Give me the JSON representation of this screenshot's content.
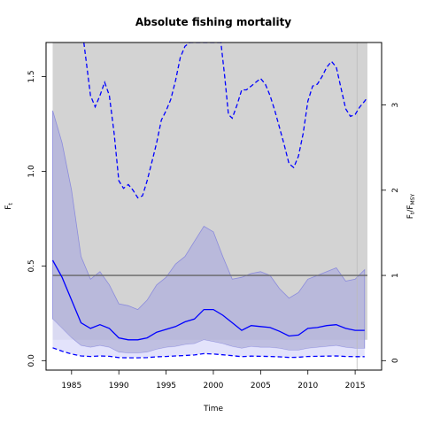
{
  "chart_data": {
    "type": "line",
    "title": "Absolute fishing mortality",
    "xlabel": "Time",
    "ylabel": "F",
    "ylabel_sub": "t",
    "y2label": "F",
    "y2label_sub": "t",
    "y2label_mid": "/F",
    "y2label_sub2": "MSY",
    "xlim": [
      1982.3,
      2017.8
    ],
    "ylim": [
      -0.05,
      1.68
    ],
    "fmsy": 0.45,
    "y2_scale": 0.45,
    "x_ticks": [
      1985,
      1990,
      1995,
      2000,
      2005,
      2010,
      2015
    ],
    "x_tick_labels": [
      "1985",
      "1990",
      "1995",
      "2000",
      "2005",
      "2010",
      "2015"
    ],
    "y_ticks": [
      0,
      0.5,
      1,
      1.5
    ],
    "y_tick_labels": [
      "0.0",
      "0.5",
      "1.0",
      "1.5"
    ],
    "y2_ticks": [
      0,
      1,
      2,
      3
    ],
    "y2_tick_labels": [
      "0",
      "1",
      "2",
      "3"
    ],
    "grey_band": {
      "x_start": 1983,
      "x_end": 2016.3,
      "y_bottom": 0.11,
      "y_top": 1.68
    },
    "last_obs_year": 2015.2,
    "colors": {
      "estimate": "#0000ff",
      "ci_fill": "#b4b4dc",
      "ci_outline": "#8c8cdc",
      "grey_band": "#d3d3d3",
      "fmsy_line": "#666666",
      "low_band": "#dcdcfa"
    },
    "series": [
      {
        "role": "F estimate",
        "x": [
          1983,
          1984,
          1985,
          1986,
          1987,
          1988,
          1989,
          1990,
          1991,
          1992,
          1993,
          1994,
          1995,
          1996,
          1997,
          1998,
          1999,
          2000,
          2001,
          2002,
          2003,
          2004,
          2005,
          2006,
          2007,
          2008,
          2009,
          2010,
          2011,
          2012,
          2013,
          2014,
          2015,
          2016
        ],
        "values": [
          0.53,
          0.44,
          0.32,
          0.2,
          0.17,
          0.19,
          0.17,
          0.12,
          0.11,
          0.11,
          0.12,
          0.15,
          0.165,
          0.18,
          0.205,
          0.22,
          0.27,
          0.27,
          0.24,
          0.2,
          0.16,
          0.185,
          0.18,
          0.175,
          0.155,
          0.13,
          0.135,
          0.17,
          0.175,
          0.185,
          0.19,
          0.17,
          0.16,
          0.16
        ]
      },
      {
        "role": "Upper 95% CI",
        "x": [
          1983,
          1984,
          1985,
          1986,
          1987,
          1988,
          1989,
          1990,
          1991,
          1992,
          1993,
          1994,
          1995,
          1996,
          1997,
          1998,
          1999,
          2000,
          2001,
          2002,
          2003,
          2004,
          2005,
          2006,
          2007,
          2008,
          2009,
          2010,
          2011,
          2012,
          2013,
          2014,
          2015,
          2016
        ],
        "values": [
          1.32,
          1.15,
          0.9,
          0.55,
          0.43,
          0.47,
          0.4,
          0.3,
          0.29,
          0.27,
          0.32,
          0.4,
          0.44,
          0.51,
          0.55,
          0.63,
          0.71,
          0.68,
          0.55,
          0.43,
          0.44,
          0.46,
          0.47,
          0.45,
          0.38,
          0.33,
          0.36,
          0.43,
          0.45,
          0.47,
          0.49,
          0.42,
          0.43,
          0.48
        ]
      },
      {
        "role": "Lower 95% CI",
        "x": [
          1983,
          1984,
          1985,
          1986,
          1987,
          1988,
          1989,
          1990,
          1991,
          1992,
          1993,
          1994,
          1995,
          1996,
          1997,
          1998,
          1999,
          2000,
          2001,
          2002,
          2003,
          2004,
          2005,
          2006,
          2007,
          2008,
          2009,
          2010,
          2011,
          2012,
          2013,
          2014,
          2015,
          2016
        ],
        "values": [
          0.22,
          0.17,
          0.12,
          0.08,
          0.07,
          0.08,
          0.07,
          0.045,
          0.04,
          0.04,
          0.045,
          0.06,
          0.07,
          0.075,
          0.085,
          0.09,
          0.11,
          0.1,
          0.09,
          0.075,
          0.065,
          0.075,
          0.07,
          0.07,
          0.065,
          0.055,
          0.055,
          0.065,
          0.07,
          0.075,
          0.08,
          0.07,
          0.065,
          0.065
        ]
      },
      {
        "role": "Relative F upper bound (dashed)",
        "x": [
          1986.3,
          1987,
          1987.5,
          1988,
          1988.5,
          1989,
          1989.5,
          1990,
          1990.5,
          1991,
          1991.5,
          1992,
          1992.5,
          1993,
          1993.5,
          1994,
          1994.5,
          1995,
          1995.5,
          1996,
          1996.5,
          1997,
          1997.5,
          2000.8,
          2001.2,
          2001.6,
          2002,
          2002.5,
          2003,
          2003.5,
          2004,
          2004.5,
          2005,
          2005.5,
          2006,
          2006.5,
          2007,
          2007.5,
          2008,
          2008.5,
          2009,
          2009.5,
          2010,
          2010.5,
          2011,
          2011.5,
          2012,
          2012.5,
          2013,
          2013.5,
          2014,
          2014.5,
          2015,
          2015.5,
          2016,
          2016.3
        ],
        "values": [
          1.68,
          1.4,
          1.34,
          1.4,
          1.47,
          1.4,
          1.2,
          0.95,
          0.91,
          0.93,
          0.9,
          0.86,
          0.87,
          0.95,
          1.05,
          1.15,
          1.27,
          1.32,
          1.38,
          1.48,
          1.6,
          1.66,
          1.68,
          1.68,
          1.5,
          1.3,
          1.28,
          1.35,
          1.43,
          1.43,
          1.45,
          1.47,
          1.49,
          1.46,
          1.4,
          1.32,
          1.23,
          1.14,
          1.04,
          1.02,
          1.08,
          1.2,
          1.37,
          1.45,
          1.46,
          1.5,
          1.55,
          1.58,
          1.55,
          1.44,
          1.33,
          1.29,
          1.3,
          1.34,
          1.37,
          1.39
        ]
      },
      {
        "role": "Relative F lower bound (dashed)",
        "x": [
          1983,
          1984,
          1985,
          1986,
          1987,
          1988,
          1989,
          1990,
          1991,
          1992,
          1993,
          1994,
          1995,
          1996,
          1997,
          1998,
          1999,
          2000,
          2001,
          2002,
          2003,
          2004,
          2005,
          2006,
          2007,
          2008,
          2009,
          2010,
          2011,
          2012,
          2013,
          2014,
          2015,
          2016
        ],
        "values": [
          0.068,
          0.05,
          0.035,
          0.025,
          0.022,
          0.025,
          0.023,
          0.016,
          0.015,
          0.015,
          0.016,
          0.02,
          0.022,
          0.025,
          0.027,
          0.03,
          0.037,
          0.035,
          0.031,
          0.026,
          0.021,
          0.024,
          0.023,
          0.022,
          0.02,
          0.017,
          0.018,
          0.022,
          0.023,
          0.024,
          0.025,
          0.022,
          0.021,
          0.021
        ]
      }
    ]
  }
}
